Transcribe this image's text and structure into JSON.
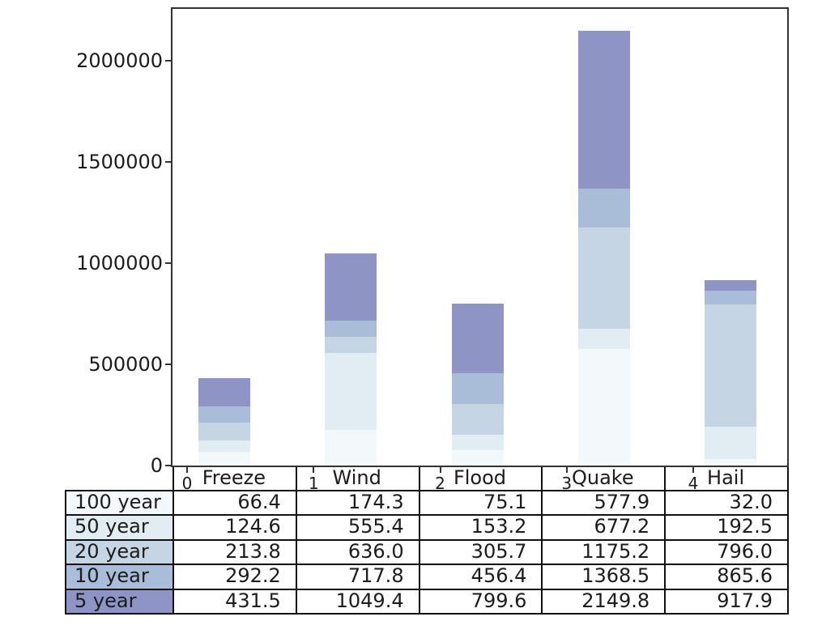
{
  "colors": {
    "background": "#ffffff",
    "axis": "#333333",
    "table_border": "#111111",
    "text": "#1c1c1c"
  },
  "chart_data": {
    "type": "bar",
    "subtype": "overlaid-cumulative-bands-with-table",
    "title": "",
    "xlabel": "",
    "ylabel": "",
    "grid": false,
    "legend_position": "none",
    "categories": [
      "Freeze",
      "Wind",
      "Flood",
      "Quake",
      "Hail"
    ],
    "x_tick_labels": [
      "0",
      "1",
      "2",
      "3",
      "4"
    ],
    "y_ticks": [
      {
        "label": "0",
        "value": 0
      },
      {
        "label": "500000",
        "value": 500000
      },
      {
        "label": "1000000",
        "value": 1000000
      },
      {
        "label": "1500000",
        "value": 1500000
      },
      {
        "label": "2000000",
        "value": 2000000
      }
    ],
    "ylim": [
      0,
      2256000
    ],
    "value_unit_multiplier": 1000,
    "series": [
      {
        "name": "100 year",
        "color": "#f3f8fb",
        "values": [
          66.4,
          174.3,
          75.1,
          577.9,
          32.0
        ]
      },
      {
        "name": "50 year",
        "color": "#e2ecf3",
        "values": [
          124.6,
          555.4,
          153.2,
          677.2,
          192.5
        ]
      },
      {
        "name": "20 year",
        "color": "#c6d5e4",
        "values": [
          213.8,
          636.0,
          305.7,
          1175.2,
          796.0
        ]
      },
      {
        "name": "10 year",
        "color": "#a9bcd8",
        "values": [
          292.2,
          717.8,
          456.4,
          1368.5,
          865.6
        ]
      },
      {
        "name": "5 year",
        "color": "#8e94c4",
        "values": [
          431.5,
          1049.4,
          799.6,
          2149.8,
          917.9
        ]
      }
    ]
  },
  "table": {
    "column_headers": [
      "Freeze",
      "Wind",
      "Flood",
      "Quake",
      "Hail"
    ],
    "rows": [
      {
        "label": "100 year",
        "color": "#f3f8fb",
        "values": [
          "66.4",
          "174.3",
          "75.1",
          "577.9",
          "32.0"
        ]
      },
      {
        "label": "50 year",
        "color": "#e2ecf3",
        "values": [
          "124.6",
          "555.4",
          "153.2",
          "677.2",
          "192.5"
        ]
      },
      {
        "label": "20 year",
        "color": "#c6d5e4",
        "values": [
          "213.8",
          "636.0",
          "305.7",
          "1175.2",
          "796.0"
        ]
      },
      {
        "label": "10 year",
        "color": "#a9bcd8",
        "values": [
          "292.2",
          "717.8",
          "456.4",
          "1368.5",
          "865.6"
        ]
      },
      {
        "label": "5 year",
        "color": "#8e94c4",
        "values": [
          "431.5",
          "1049.4",
          "799.6",
          "2149.8",
          "917.9"
        ]
      }
    ]
  }
}
